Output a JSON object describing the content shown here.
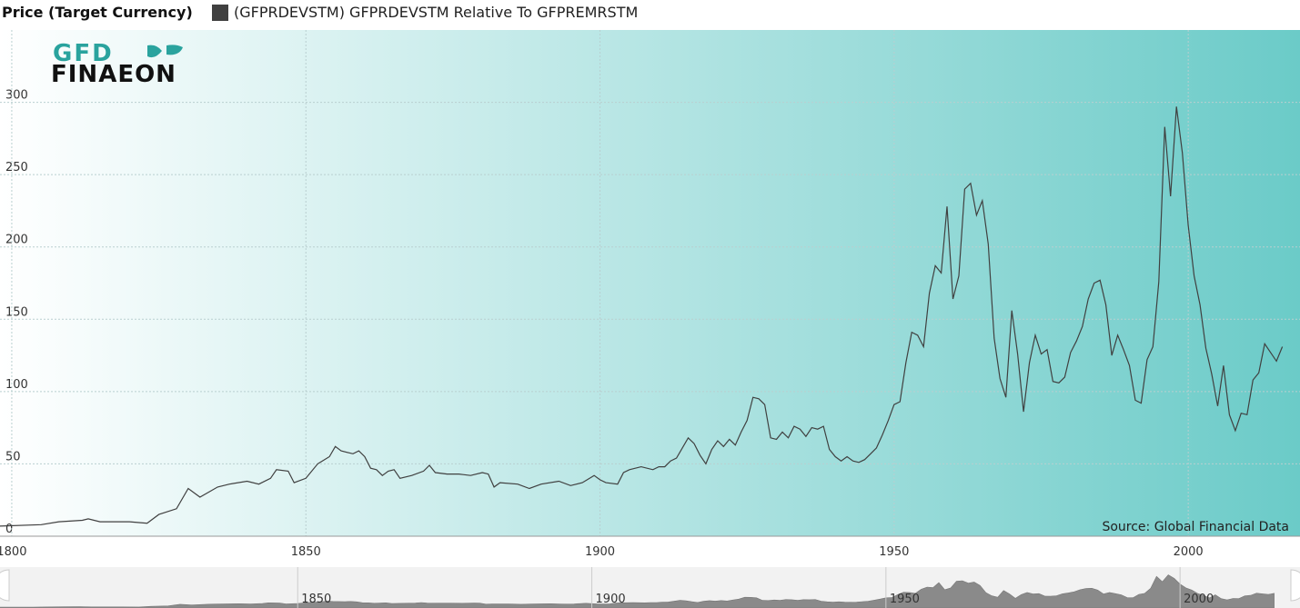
{
  "chart_data": {
    "type": "line",
    "y_label": "Price (Target Currency)",
    "logo": [
      "GFD",
      "FINAEON"
    ],
    "source": "Source: Global Financial Data",
    "x": [
      1798,
      1805,
      1808,
      1812,
      1813,
      1815,
      1820,
      1823,
      1825,
      1828,
      1830,
      1832,
      1835,
      1837,
      1840,
      1842,
      1844,
      1845,
      1847,
      1848,
      1850,
      1852,
      1854,
      1855,
      1856,
      1858,
      1859,
      1860,
      1861,
      1862,
      1863,
      1864,
      1865,
      1866,
      1868,
      1870,
      1871,
      1872,
      1874,
      1876,
      1878,
      1880,
      1881,
      1882,
      1883,
      1886,
      1888,
      1890,
      1893,
      1895,
      1897,
      1899,
      1900,
      1901,
      1903,
      1904,
      1905,
      1907,
      1909,
      1910,
      1911,
      1912,
      1913,
      1915,
      1916,
      1917,
      1918,
      1919,
      1920,
      1921,
      1922,
      1923,
      1924,
      1925,
      1926,
      1927,
      1928,
      1929,
      1930,
      1931,
      1932,
      1933,
      1934,
      1935,
      1936,
      1937,
      1938,
      1939,
      1940,
      1941,
      1942,
      1943,
      1944,
      1945,
      1946,
      1947,
      1948,
      1949,
      1950,
      1951,
      1952,
      1953,
      1954,
      1955,
      1956,
      1957,
      1958,
      1959,
      1960,
      1961,
      1962,
      1963,
      1964,
      1965,
      1966,
      1967,
      1968,
      1969,
      1970,
      1971,
      1972,
      1973,
      1974,
      1975,
      1976,
      1977,
      1978,
      1979,
      1980,
      1981,
      1982,
      1983,
      1984,
      1985,
      1986,
      1987,
      1988,
      1989,
      1990,
      1991,
      1992,
      1993,
      1994,
      1995,
      1996,
      1997,
      1998,
      1999,
      2000,
      2001,
      2002,
      2003,
      2004,
      2005,
      2006,
      2007,
      2008,
      2009,
      2010,
      2011,
      2012,
      2013,
      2014,
      2015,
      2016
    ],
    "series": [
      {
        "name": "(GFPRDEVSTM) GFPRDEVSTM Relative To GFPREMRSTM",
        "color": "#404040",
        "values": [
          7,
          8,
          10,
          11,
          12,
          10,
          10,
          9,
          15,
          19,
          33,
          27,
          34,
          36,
          38,
          36,
          40,
          46,
          45,
          37,
          40,
          50,
          55,
          62,
          59,
          57,
          59,
          55,
          47,
          46,
          42,
          45,
          46,
          40,
          42,
          45,
          49,
          44,
          43,
          43,
          42,
          44,
          43,
          34,
          37,
          36,
          33,
          36,
          38,
          35,
          37,
          42,
          39,
          37,
          36,
          44,
          46,
          48,
          46,
          48,
          48,
          52,
          54,
          68,
          64,
          56,
          50,
          60,
          66,
          62,
          67,
          63,
          72,
          80,
          96,
          95,
          91,
          68,
          67,
          72,
          68,
          76,
          74,
          69,
          75,
          74,
          76,
          60,
          55,
          52,
          55,
          52,
          51,
          53,
          57,
          61,
          70,
          80,
          91,
          93,
          120,
          141,
          139,
          131,
          168,
          187,
          182,
          228,
          164,
          180,
          240,
          244,
          222,
          232,
          202,
          137,
          109,
          96,
          156,
          126,
          86,
          120,
          139,
          126,
          129,
          107,
          106,
          110,
          127,
          135,
          145,
          164,
          175,
          177,
          160,
          125,
          139,
          129,
          118,
          94,
          92,
          122,
          131,
          176,
          283,
          235,
          297,
          265,
          215,
          180,
          160,
          130,
          112,
          90,
          118,
          84,
          73,
          85,
          84,
          108,
          113,
          133,
          127,
          121,
          131
        ]
      }
    ],
    "xlim": [
      1798,
      2019
    ],
    "xticks": [
      1800,
      1850,
      1900,
      1950,
      2000
    ],
    "ylim": [
      0,
      350
    ],
    "yticks": [
      0,
      50,
      100,
      150,
      200,
      250,
      300
    ],
    "grid": true,
    "navigator": {
      "xticks": [
        1850,
        1900,
        1950,
        2000
      ]
    }
  }
}
